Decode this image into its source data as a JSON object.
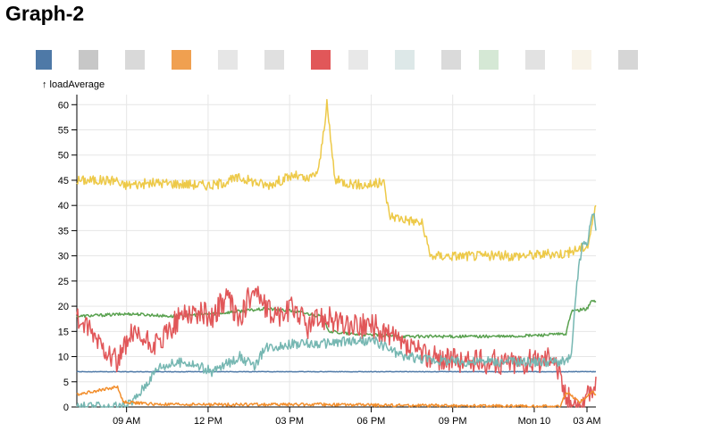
{
  "page": {
    "title": "Graph-2"
  },
  "legend": {
    "swatches": [
      "#4e79a7",
      "#c7c7c7",
      "#d9d9d9",
      "#f0a050",
      "#e6e6e6",
      "#e0e0e0",
      "#e15759",
      "#e8e8e8",
      "#dde8e8",
      "#dadada",
      "#d5e8d5",
      "#e2e2e2",
      "#f8f3e8",
      "#d6d6d6"
    ]
  },
  "chart_data": {
    "type": "line",
    "ylabel": "↑ loadAverage",
    "ylim": [
      0,
      62
    ],
    "yticks": [
      0,
      5,
      10,
      15,
      20,
      25,
      30,
      35,
      40,
      45,
      50,
      55,
      60
    ],
    "xlim": [
      0,
      19.1
    ],
    "xticks": [
      {
        "x": 1.83,
        "label": "09 AM"
      },
      {
        "x": 4.83,
        "label": "12 PM"
      },
      {
        "x": 7.83,
        "label": "03 PM"
      },
      {
        "x": 10.83,
        "label": "06 PM"
      },
      {
        "x": 13.83,
        "label": "09 PM"
      },
      {
        "x": 16.83,
        "label": "Mon 10"
      },
      {
        "x": 19.83,
        "label": "03 AM"
      }
    ],
    "grid": true,
    "series": [
      {
        "color": "#edc948",
        "values": [
          [
            0,
            45
          ],
          [
            1.5,
            45
          ],
          [
            1.6,
            44
          ],
          [
            3,
            44.5
          ],
          [
            5,
            44
          ],
          [
            6,
            45.5
          ],
          [
            7,
            44
          ],
          [
            8,
            46
          ],
          [
            8.5,
            45
          ],
          [
            8.9,
            47
          ],
          [
            9.2,
            60
          ],
          [
            9.5,
            45
          ],
          [
            10.5,
            44
          ],
          [
            11.3,
            44.5
          ],
          [
            11.5,
            38
          ],
          [
            12.7,
            36.5
          ],
          [
            13,
            30
          ],
          [
            14,
            30
          ],
          [
            16,
            30
          ],
          [
            18,
            30.5
          ],
          [
            18.8,
            32
          ],
          [
            19.1,
            40
          ]
        ]
      },
      {
        "color": "#59a14f",
        "values": [
          [
            0,
            18
          ],
          [
            2,
            18.5
          ],
          [
            3.5,
            18
          ],
          [
            5,
            18.5
          ],
          [
            6,
            19
          ],
          [
            7,
            19.5
          ],
          [
            8,
            19
          ],
          [
            9,
            18
          ],
          [
            9.3,
            15
          ],
          [
            10,
            14.5
          ],
          [
            12,
            14
          ],
          [
            16,
            14
          ],
          [
            18,
            14.5
          ],
          [
            18.2,
            19
          ],
          [
            18.8,
            19.5
          ],
          [
            18.9,
            21
          ],
          [
            19.1,
            21
          ]
        ]
      },
      {
        "color": "#4e79a7",
        "values": [
          [
            0,
            7
          ],
          [
            19.1,
            7
          ]
        ]
      },
      {
        "color": "#e15759",
        "values": [
          [
            0,
            17.5
          ],
          [
            0.8,
            13
          ],
          [
            1.5,
            9
          ],
          [
            2,
            14
          ],
          [
            3,
            12
          ],
          [
            3.5,
            16
          ],
          [
            4,
            19
          ],
          [
            5,
            18
          ],
          [
            5.5,
            22
          ],
          [
            6,
            17
          ],
          [
            6.5,
            24
          ],
          [
            7,
            19
          ],
          [
            7.5,
            18
          ],
          [
            8,
            20
          ],
          [
            8.5,
            16
          ],
          [
            9,
            18
          ],
          [
            9.5,
            17
          ],
          [
            10,
            16
          ],
          [
            11,
            16
          ],
          [
            12,
            12
          ],
          [
            13,
            10
          ],
          [
            14,
            9
          ],
          [
            15,
            9
          ],
          [
            16,
            9
          ],
          [
            17,
            9
          ],
          [
            17.5,
            11
          ],
          [
            18,
            2
          ],
          [
            18.5,
            0
          ],
          [
            19,
            3
          ],
          [
            19.1,
            6
          ]
        ]
      },
      {
        "color": "#76b7b2",
        "values": [
          [
            0,
            0
          ],
          [
            1.8,
            0
          ],
          [
            2.2,
            2
          ],
          [
            3,
            8
          ],
          [
            4,
            9
          ],
          [
            5,
            7
          ],
          [
            6,
            10
          ],
          [
            6.5,
            8
          ],
          [
            7,
            12
          ],
          [
            8,
            12.5
          ],
          [
            9,
            12.5
          ],
          [
            10,
            13
          ],
          [
            11,
            13
          ],
          [
            12,
            10
          ],
          [
            13,
            9.5
          ],
          [
            14,
            9
          ],
          [
            15,
            9
          ],
          [
            16,
            9
          ],
          [
            17,
            9
          ],
          [
            17.5,
            9
          ],
          [
            18,
            9
          ],
          [
            18.2,
            10
          ],
          [
            18.4,
            25
          ],
          [
            18.6,
            32
          ],
          [
            18.8,
            33
          ],
          [
            19,
            39
          ],
          [
            19.1,
            35
          ]
        ]
      },
      {
        "color": "#f28e2c",
        "values": [
          [
            0,
            2.5
          ],
          [
            1.5,
            4
          ],
          [
            1.7,
            1
          ],
          [
            3,
            0.5
          ],
          [
            6,
            0.5
          ],
          [
            9,
            0.5
          ],
          [
            12,
            0.3
          ],
          [
            15,
            0.2
          ],
          [
            17.8,
            0.1
          ],
          [
            18,
            3
          ],
          [
            18.5,
            1
          ],
          [
            19,
            3
          ],
          [
            19.1,
            2.5
          ]
        ]
      }
    ]
  }
}
